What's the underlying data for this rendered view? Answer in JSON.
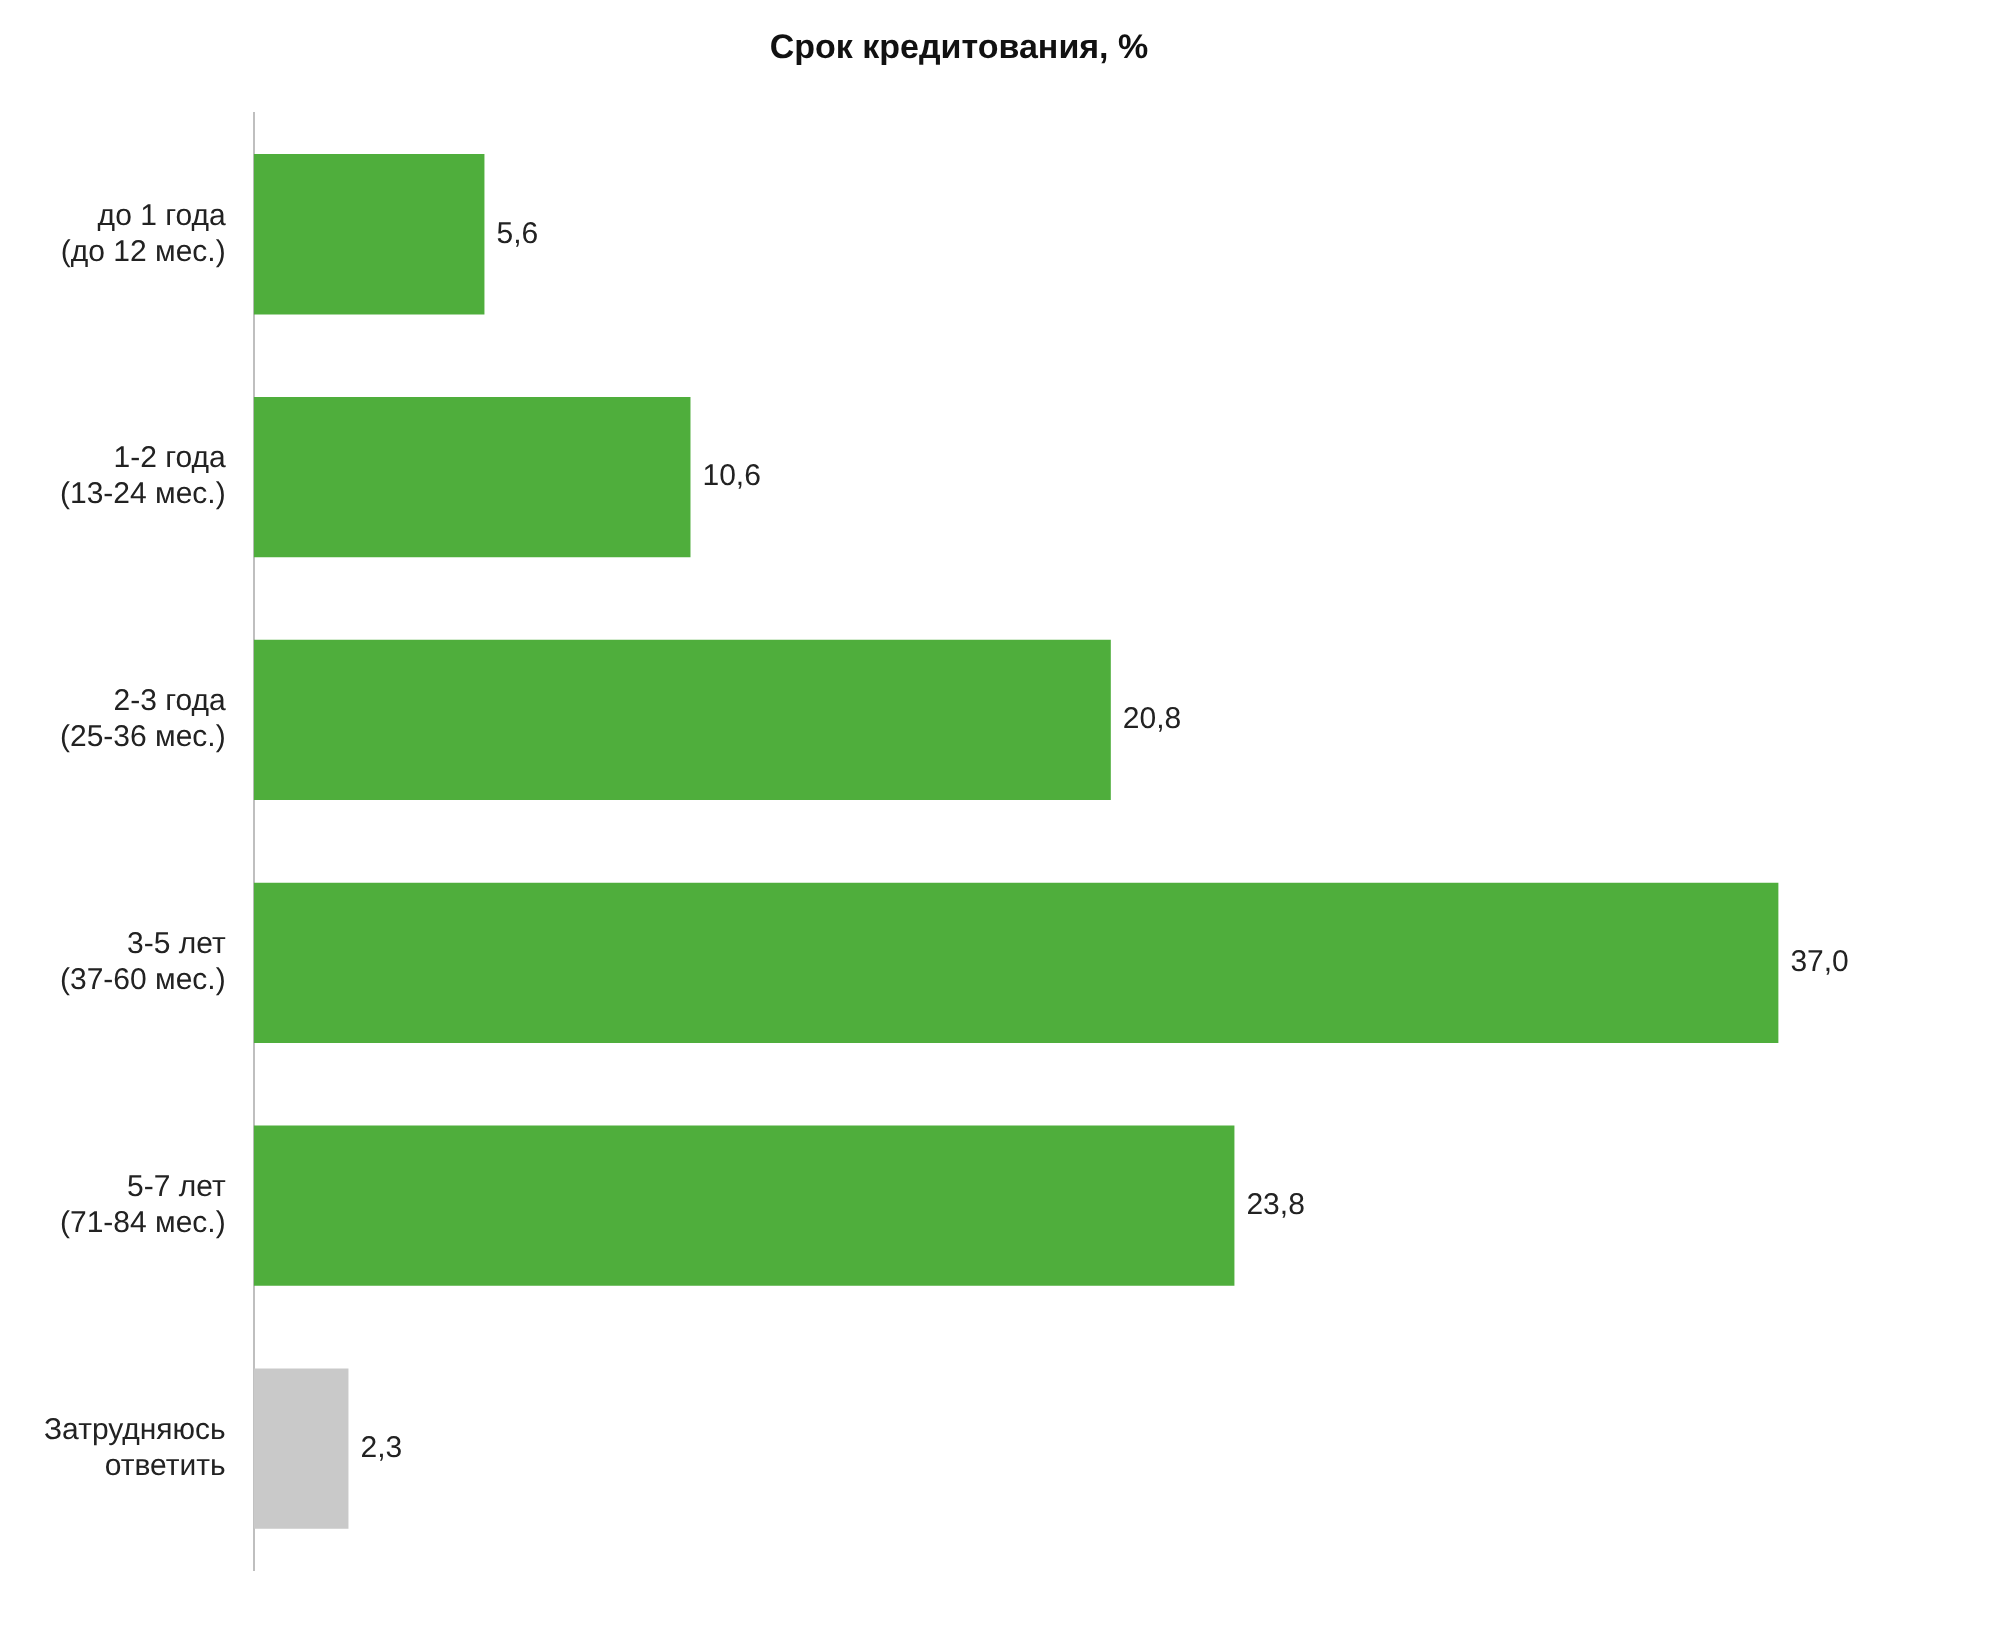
{
  "chart_data": {
    "type": "bar",
    "orientation": "horizontal",
    "title": "Срок кредитования, %",
    "categories": [
      "до 1 года\n(до 12 мес.)",
      "1-2 года\n(13-24 мес.)",
      "2-3 года\n(25-36 мес.)",
      "3-5 лет\n(37-60 мес.)",
      "5-7 лет\n(71-84 мес.)",
      "Затрудняюсь\nответить"
    ],
    "values": [
      5.6,
      10.6,
      20.8,
      37.0,
      23.8,
      2.3
    ],
    "value_labels": [
      "5,6",
      "10,6",
      "20,8",
      "37,0",
      "23,8",
      "2,3"
    ],
    "colors": [
      "#4fae3c",
      "#4fae3c",
      "#4fae3c",
      "#4fae3c",
      "#4fae3c",
      "#c9c9c9"
    ],
    "grid": false,
    "legend": false
  }
}
